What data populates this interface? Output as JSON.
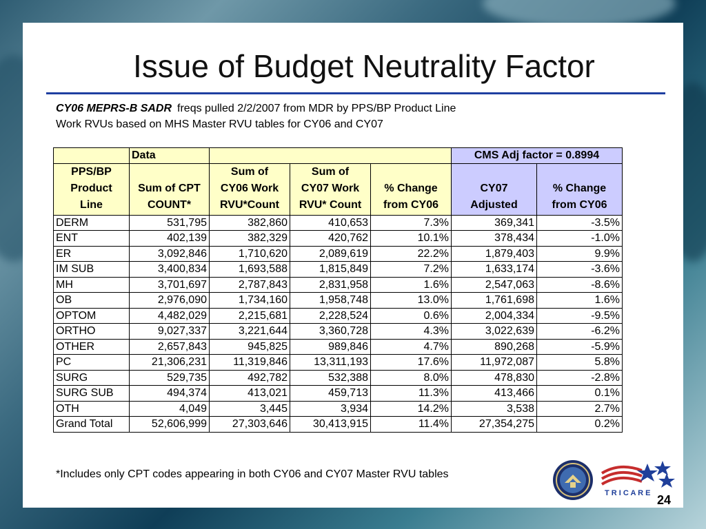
{
  "title": "Issue of Budget Neutrality Factor",
  "subtitle": {
    "emphasis": "CY06 MEPRS-B SADR",
    "text": "freqs pulled 2/2/2007 from MDR by PPS/BP Product Line",
    "line2": "Work RVUs based on MHS Master RVU tables for CY06 and CY07"
  },
  "table": {
    "top_data_label": "Data",
    "cms_factor_label": "CMS Adj factor = 0.8994",
    "headers": [
      [
        "PPS/BP",
        "Product",
        "Line"
      ],
      [
        "",
        "Sum of CPT",
        "COUNT*"
      ],
      [
        "Sum of",
        "CY06 Work",
        "RVU*Count"
      ],
      [
        "Sum of",
        "CY07 Work",
        "RVU* Count"
      ],
      [
        "",
        "% Change",
        "from CY06"
      ],
      [
        "",
        "CY07",
        "Adjusted"
      ],
      [
        "",
        "% Change",
        "from CY06"
      ]
    ],
    "rows": [
      [
        "DERM",
        "531,795",
        "382,860",
        "410,653",
        "7.3%",
        "369,341",
        "-3.5%"
      ],
      [
        "ENT",
        "402,139",
        "382,329",
        "420,762",
        "10.1%",
        "378,434",
        "-1.0%"
      ],
      [
        "ER",
        "3,092,846",
        "1,710,620",
        "2,089,619",
        "22.2%",
        "1,879,403",
        "9.9%"
      ],
      [
        "IM SUB",
        "3,400,834",
        "1,693,588",
        "1,815,849",
        "7.2%",
        "1,633,174",
        "-3.6%"
      ],
      [
        "MH",
        "3,701,697",
        "2,787,843",
        "2,831,958",
        "1.6%",
        "2,547,063",
        "-8.6%"
      ],
      [
        "OB",
        "2,976,090",
        "1,734,160",
        "1,958,748",
        "13.0%",
        "1,761,698",
        "1.6%"
      ],
      [
        "OPTOM",
        "4,482,029",
        "2,215,681",
        "2,228,524",
        "0.6%",
        "2,004,334",
        "-9.5%"
      ],
      [
        "ORTHO",
        "9,027,337",
        "3,221,644",
        "3,360,728",
        "4.3%",
        "3,022,639",
        "-6.2%"
      ],
      [
        "OTHER",
        "2,657,843",
        "945,825",
        "989,846",
        "4.7%",
        "890,268",
        "-5.9%"
      ],
      [
        "PC",
        "21,306,231",
        "11,319,846",
        "13,311,193",
        "17.6%",
        "11,972,087",
        "5.8%"
      ],
      [
        "SURG",
        "529,735",
        "492,782",
        "532,388",
        "8.0%",
        "478,830",
        "-2.8%"
      ],
      [
        "SURG SUB",
        "494,374",
        "413,021",
        "459,713",
        "11.3%",
        "413,466",
        "0.1%"
      ],
      [
        "OTH",
        "4,049",
        "3,445",
        "3,934",
        "14.2%",
        "3,538",
        "2.7%"
      ],
      [
        "Grand Total",
        "52,606,999",
        "27,303,646",
        "30,413,915",
        "11.4%",
        "27,354,275",
        "0.2%"
      ]
    ]
  },
  "footnote": "*Includes only CPT codes appearing in both CY06 and CY07 Master RVU tables",
  "page_number": "24",
  "logos": {
    "seal_icon": "dod-seal-icon",
    "tricare_text": "T R I C A R E"
  }
}
